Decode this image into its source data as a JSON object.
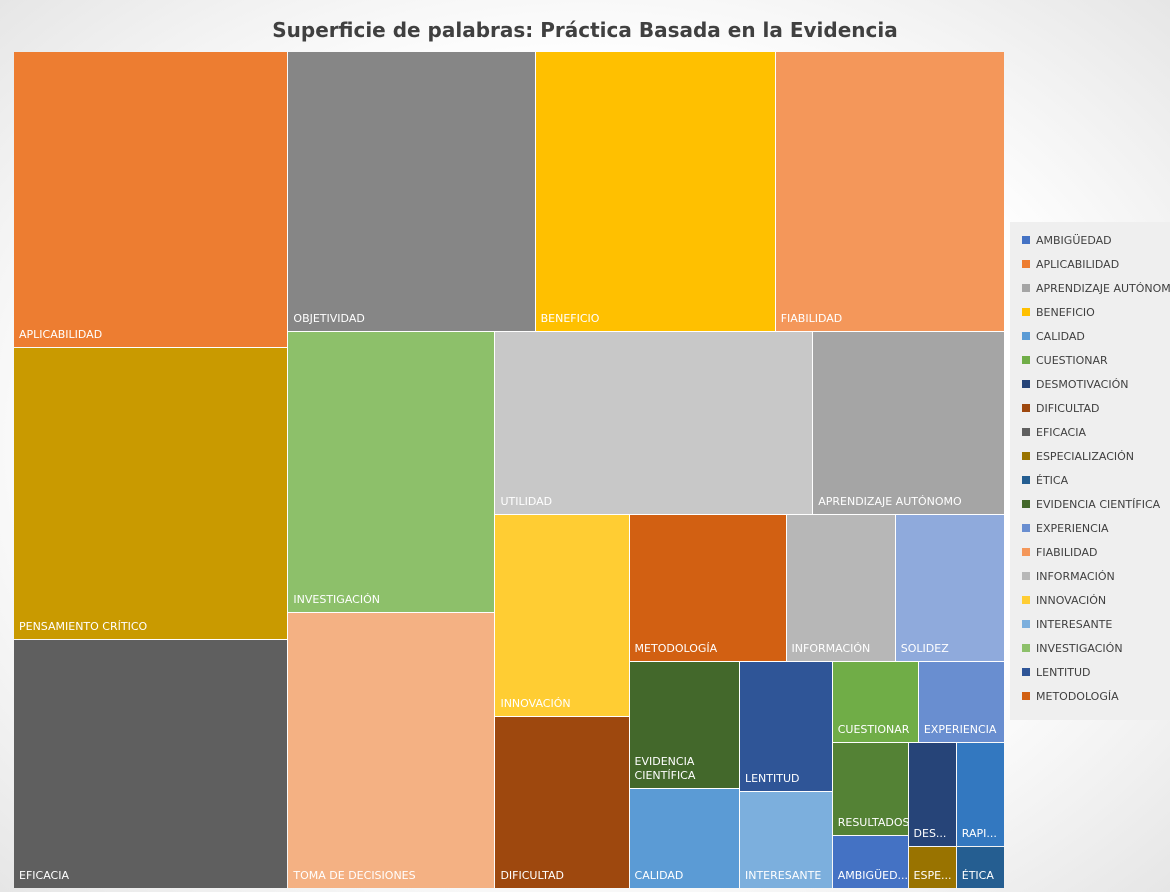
{
  "chart_data": {
    "type": "treemap",
    "title": "Superficie de palabras: Práctica Basada en la Evidencia",
    "categories": [
      "APLICABILIDAD",
      "PENSAMIENTO CRÍTICO",
      "EFICACIA",
      "OBJETIVIDAD",
      "BENEFICIO",
      "FIABILIDAD",
      "INVESTIGACIÓN",
      "TOMA DE DECISIONES",
      "UTILIDAD",
      "APRENDIZAJE AUTÓNOMO",
      "INNOVACIÓN",
      "DIFICULTAD",
      "METODOLOGÍA",
      "INFORMACIÓN",
      "SOLIDEZ",
      "EVIDENCIA CIENTÍFICA",
      "CALIDAD",
      "LENTITUD",
      "INTERESANTE",
      "CUESTIONAR",
      "EXPERIENCIA",
      "RESULTADOS",
      "AMBIGÜED...",
      "DES...",
      "ESPE...",
      "RAPI...",
      "ÉTICA"
    ],
    "values": [
      81,
      80,
      68,
      69,
      67,
      64,
      58,
      57,
      58,
      35,
      27,
      23,
      23,
      16,
      16,
      14,
      11,
      12,
      9,
      7,
      7,
      7,
      4,
      5,
      2,
      5,
      2
    ],
    "colors": [
      "#ed7d31",
      "#c99a00",
      "#5f5f5f",
      "#868686",
      "#ffc000",
      "#f4975a",
      "#8dc06a",
      "#f4b183",
      "#c8c8c8",
      "#a5a5a5",
      "#ffcd33",
      "#9e480e",
      "#d26012",
      "#b7b7b7",
      "#8faadc",
      "#43682b",
      "#5b9bd5",
      "#2f5597",
      "#7cafdd",
      "#70ad47",
      "#698ed0",
      "#548235",
      "#4472c4",
      "#264478",
      "#997300",
      "#3378c0",
      "#255e91"
    ],
    "legend": [
      "AMBIGÜEDAD",
      "APLICABILIDAD",
      "APRENDIZAJE AUTÓNOMO",
      "BENEFICIO",
      "CALIDAD",
      "CUESTIONAR",
      "DESMOTIVACIÓN",
      "DIFICULTAD",
      "EFICACIA",
      "ESPECIALIZACIÓN",
      "ÉTICA",
      "EVIDENCIA CIENTÍFICA",
      "EXPERIENCIA",
      "FIABILIDAD",
      "INFORMACIÓN",
      "INNOVACIÓN",
      "INTERESANTE",
      "INVESTIGACIÓN",
      "LENTITUD",
      "METODOLOGÍA"
    ]
  }
}
